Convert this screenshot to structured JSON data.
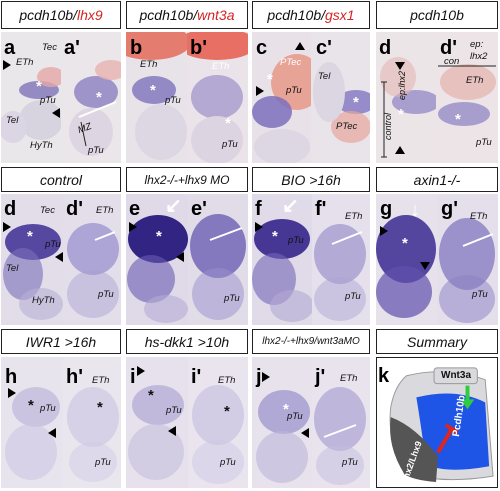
{
  "headers": {
    "h1": {
      "a": "pcdh10b/",
      "b": "lhx9"
    },
    "h2": {
      "a": "pcdh10b/",
      "b": "wnt3a"
    },
    "h3": {
      "a": "pcdh10b/",
      "b": "gsx1"
    },
    "h4": "pcdh10b",
    "h5": "control",
    "h6": "lhx2-/-+lhx9 MO",
    "h7": "BIO  >16h",
    "h8": "axin1-/-",
    "h9": "IWR1  >16h",
    "h10": "hs-dkk1 >10h",
    "h11": "lhx2-/-+lhx9/wnt3aMO",
    "h12": "Summary"
  },
  "panels": {
    "a": {
      "label": "a",
      "notes": [
        "ETh",
        "Tec",
        "pTu",
        "Tel",
        "HyTh"
      ]
    },
    "a2": {
      "label": "a'",
      "notes": [
        "pTu",
        "MZ"
      ]
    },
    "b": {
      "label": "b",
      "notes": [
        "ETh",
        "pTu"
      ]
    },
    "b2": {
      "label": "b'",
      "notes": [
        "ETh",
        "pTu"
      ]
    },
    "c": {
      "label": "c",
      "notes": [
        "PTec",
        "pTu"
      ]
    },
    "c2": {
      "label": "c'",
      "notes": [
        "Tel",
        "PTec"
      ]
    },
    "d": {
      "label": "d",
      "notes": [
        "control",
        "ep:lhx2"
      ]
    },
    "d2": {
      "label": "d'",
      "notes": [
        "ep:",
        "con",
        "lhx2",
        "ETh",
        "pTu"
      ]
    },
    "e_ctrl": {
      "label": "d",
      "notes": [
        "Tec",
        "pTu",
        "Tel",
        "HyTh"
      ]
    },
    "e_ctrl2": {
      "label": "d'",
      "notes": [
        "ETh",
        "pTu"
      ]
    },
    "e": {
      "label": "e",
      "notes": []
    },
    "e2": {
      "label": "e'",
      "notes": [
        "pTu"
      ]
    },
    "f": {
      "label": "f",
      "notes": [
        "pTu"
      ]
    },
    "f2": {
      "label": "f'",
      "notes": [
        "ETh",
        "pTu"
      ]
    },
    "g": {
      "label": "g",
      "notes": []
    },
    "g2": {
      "label": "g'",
      "notes": [
        "ETh",
        "pTu"
      ]
    },
    "h": {
      "label": "h",
      "notes": [
        "pTu"
      ]
    },
    "h2": {
      "label": "h'",
      "notes": [
        "ETh",
        "pTu"
      ]
    },
    "i": {
      "label": "i",
      "notes": [
        "pTu"
      ]
    },
    "i2": {
      "label": "i'",
      "notes": [
        "ETh",
        "pTu"
      ]
    },
    "j": {
      "label": "j",
      "notes": [
        "pTu"
      ]
    },
    "j2": {
      "label": "j'",
      "notes": [
        "ETh",
        "pTu"
      ]
    },
    "k": {
      "label": "k",
      "wnt": "Wnt3a",
      "pcdh": "Pcdh10b",
      "lhx": "Lhx2/Lhx9"
    }
  },
  "colors": {
    "stain": "#3b2a8c",
    "red_stain": "#e0402e",
    "summary_blue": "#1f55e6",
    "summary_gray": "#555555",
    "arrow_green": "#2ecc40",
    "inhibit_red": "#e0251b"
  }
}
